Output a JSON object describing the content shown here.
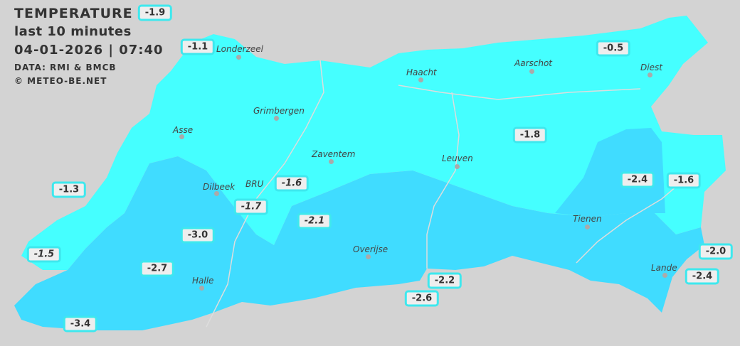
{
  "header": {
    "title": "TEMPERATURE",
    "period": "last 10 minutes",
    "datetime": "04-01-2026  |  07:40",
    "source": "DATA: RMI & BMCB",
    "copyright": "© METEO-BE.NET"
  },
  "colors": {
    "background": "#d3d3d3",
    "zone_warm": "#45ffff",
    "zone_cold": "#40dcff",
    "label_border": "#3ee8ee",
    "label_bg": "#eeeeee"
  },
  "cities": [
    {
      "name": "Londerzeel"
    },
    {
      "name": "Haacht"
    },
    {
      "name": "Aarschot"
    },
    {
      "name": "Diest"
    },
    {
      "name": "Grimbergen"
    },
    {
      "name": "Asse"
    },
    {
      "name": "Zaventem"
    },
    {
      "name": "Leuven"
    },
    {
      "name": "Dilbeek"
    },
    {
      "name": "BRU"
    },
    {
      "name": "Tienen"
    },
    {
      "name": "Overijse"
    },
    {
      "name": "Halle"
    },
    {
      "name": "Lande"
    }
  ],
  "readings": [
    "-1.9",
    "-1.1",
    "-0.5",
    "-1.8",
    "-1.3",
    "-1.6",
    "-1.7",
    "-2.4",
    "-1.6",
    "-3.0",
    "-2.1",
    "-1.5",
    "-2.7",
    "-2.2",
    "-2.0",
    "-2.4",
    "-2.6",
    "-3.4"
  ]
}
